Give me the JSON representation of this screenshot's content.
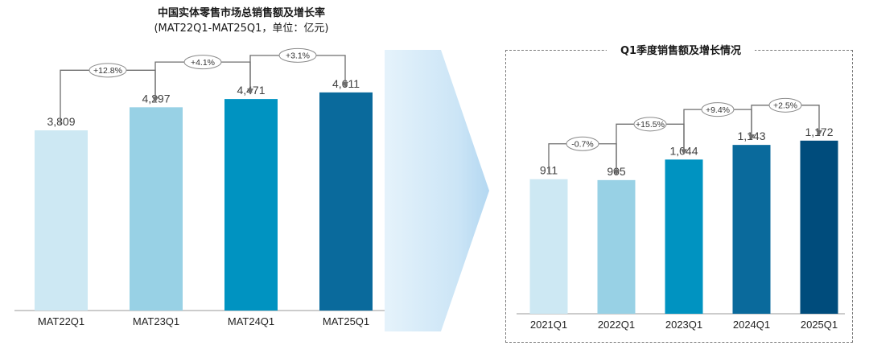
{
  "chart_data": [
    {
      "type": "bar",
      "title": "中国实体零售市场总销售额及增长率",
      "subtitle": "(MAT22Q1-MAT25Q1，单位：亿元)",
      "categories": [
        "MAT22Q1",
        "MAT23Q1",
        "MAT24Q1",
        "MAT25Q1"
      ],
      "values": [
        3809,
        4297,
        4471,
        4611
      ],
      "value_labels": [
        "3,809",
        "4,297",
        "4,471",
        "4,611"
      ],
      "growth": [
        "+12.8%",
        "+4.1%",
        "+3.1%"
      ],
      "colors": [
        "#cde8f3",
        "#98d1e5",
        "#0093c1",
        "#0a6a9c"
      ]
    },
    {
      "type": "bar",
      "title": "Q1季度销售额及增长情况",
      "categories": [
        "2021Q1",
        "2022Q1",
        "2023Q1",
        "2024Q1",
        "2025Q1"
      ],
      "values": [
        911,
        905,
        1044,
        1143,
        1172
      ],
      "value_labels": [
        "911",
        "905",
        "1,044",
        "1,143",
        "1,172"
      ],
      "growth": [
        "-0.7%",
        "+15.5%",
        "+9.4%",
        "+2.5%"
      ],
      "colors": [
        "#cde8f3",
        "#98d1e5",
        "#0093c1",
        "#0a6a9c",
        "#004c7c"
      ]
    }
  ]
}
